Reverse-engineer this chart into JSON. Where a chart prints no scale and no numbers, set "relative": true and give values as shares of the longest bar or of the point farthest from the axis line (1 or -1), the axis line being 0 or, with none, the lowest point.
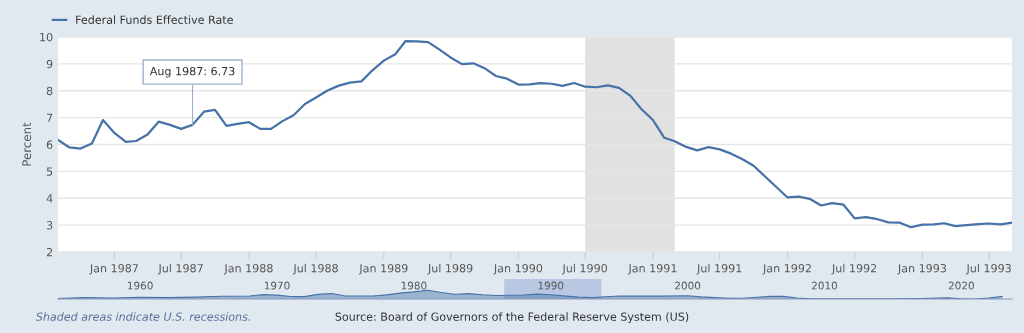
{
  "chart_data": [
    {
      "type": "line",
      "ylabel": "Percent",
      "x": [
        "1986-08",
        "1986-09",
        "1986-10",
        "1986-11",
        "1986-12",
        "1987-01",
        "1987-02",
        "1987-03",
        "1987-04",
        "1987-05",
        "1987-06",
        "1987-07",
        "1987-08",
        "1987-09",
        "1987-10",
        "1987-11",
        "1987-12",
        "1988-01",
        "1988-02",
        "1988-03",
        "1988-04",
        "1988-05",
        "1988-06",
        "1988-07",
        "1988-08",
        "1988-09",
        "1988-10",
        "1988-11",
        "1988-12",
        "1989-01",
        "1989-02",
        "1989-03",
        "1989-04",
        "1989-05",
        "1989-06",
        "1989-07",
        "1989-08",
        "1989-09",
        "1989-10",
        "1989-11",
        "1989-12",
        "1990-01",
        "1990-02",
        "1990-03",
        "1990-04",
        "1990-05",
        "1990-06",
        "1990-07",
        "1990-08",
        "1990-09",
        "1990-10",
        "1990-11",
        "1990-12",
        "1991-01",
        "1991-02",
        "1991-03",
        "1991-04",
        "1991-05",
        "1991-06",
        "1991-07",
        "1991-08",
        "1991-09",
        "1991-10",
        "1991-11",
        "1991-12",
        "1992-01",
        "1992-02",
        "1992-03",
        "1992-04",
        "1992-05",
        "1992-06",
        "1992-07",
        "1992-08",
        "1992-09",
        "1992-10",
        "1992-11",
        "1992-12",
        "1993-01",
        "1993-02",
        "1993-03",
        "1993-04",
        "1993-05",
        "1993-06",
        "1993-07",
        "1993-08",
        "1993-09"
      ],
      "series": [
        {
          "name": "Federal Funds Effective Rate",
          "color": "#4572a7",
          "values": [
            6.17,
            5.89,
            5.85,
            6.04,
            6.91,
            6.43,
            6.1,
            6.13,
            6.37,
            6.85,
            6.73,
            6.58,
            6.73,
            7.22,
            7.29,
            6.69,
            6.77,
            6.83,
            6.58,
            6.58,
            6.87,
            7.09,
            7.51,
            7.75,
            8.01,
            8.19,
            8.3,
            8.35,
            8.76,
            9.12,
            9.36,
            9.85,
            9.84,
            9.81,
            9.53,
            9.24,
            8.99,
            9.02,
            8.84,
            8.55,
            8.45,
            8.23,
            8.24,
            8.28,
            8.26,
            8.18,
            8.29,
            8.15,
            8.13,
            8.2,
            8.11,
            7.81,
            7.31,
            6.91,
            6.25,
            6.12,
            5.91,
            5.78,
            5.9,
            5.82,
            5.66,
            5.45,
            5.21,
            4.81,
            4.43,
            4.03,
            4.06,
            3.98,
            3.73,
            3.82,
            3.76,
            3.25,
            3.3,
            3.22,
            3.1,
            3.09,
            2.92,
            3.02,
            3.03,
            3.07,
            2.96,
            3.0,
            3.04,
            3.06,
            3.03,
            3.09
          ]
        }
      ],
      "xlim": [
        "1986-08",
        "1993-09"
      ],
      "xticks": [
        {
          "value": "1987-01",
          "label": "Jan 1987"
        },
        {
          "value": "1987-07",
          "label": "Jul 1987"
        },
        {
          "value": "1988-01",
          "label": "Jan 1988"
        },
        {
          "value": "1988-07",
          "label": "Jul 1988"
        },
        {
          "value": "1989-01",
          "label": "Jan 1989"
        },
        {
          "value": "1989-07",
          "label": "Jul 1989"
        },
        {
          "value": "1990-01",
          "label": "Jan 1990"
        },
        {
          "value": "1990-07",
          "label": "Jul 1990"
        },
        {
          "value": "1991-01",
          "label": "Jan 1991"
        },
        {
          "value": "1991-07",
          "label": "Jul 1991"
        },
        {
          "value": "1992-01",
          "label": "Jan 1992"
        },
        {
          "value": "1992-07",
          "label": "Jul 1992"
        },
        {
          "value": "1993-01",
          "label": "Jan 1993"
        },
        {
          "value": "1993-07",
          "label": "Jul 1993"
        }
      ],
      "ylim": [
        2,
        10
      ],
      "yticks": [
        2,
        3,
        4,
        5,
        6,
        7,
        8,
        9,
        10
      ],
      "grid": "y",
      "legend": "top left",
      "marker": "none",
      "line_style": "solid",
      "bands": [
        {
          "axis": "x",
          "from": "1990-07",
          "to": "1991-03",
          "color": "#e1e1e1"
        }
      ],
      "annotations": [
        {
          "text": "Aug 1987: 6.73",
          "x": "1987-08",
          "y": 6.73
        },
        "Shaded areas indicate U.S. recessions.",
        "Source: Board of Governors of the Federal Reserve System (US)"
      ]
    },
    {
      "type": "area",
      "relative": true,
      "x": [
        1954,
        1956,
        1958,
        1960,
        1962,
        1964,
        1966,
        1968,
        1969,
        1970,
        1971,
        1972,
        1973,
        1974,
        1975,
        1977,
        1978,
        1979,
        1980,
        1981,
        1982,
        1983,
        1984,
        1985,
        1986,
        1988,
        1989,
        1990,
        1992,
        1993,
        1995,
        1998,
        2000,
        2001,
        2003,
        2004,
        2006,
        2007,
        2008,
        2009,
        2015,
        2017,
        2019,
        2020,
        2021,
        2022,
        2023
      ],
      "series": [
        {
          "color": "#4572a7",
          "values": [
            0.06,
            0.16,
            0.1,
            0.2,
            0.16,
            0.21,
            0.31,
            0.35,
            0.5,
            0.44,
            0.29,
            0.27,
            0.53,
            0.64,
            0.35,
            0.34,
            0.48,
            0.68,
            0.82,
            1.0,
            0.75,
            0.55,
            0.62,
            0.49,
            0.41,
            0.46,
            0.56,
            0.49,
            0.21,
            0.18,
            0.35,
            0.33,
            0.38,
            0.24,
            0.07,
            0.08,
            0.3,
            0.3,
            0.12,
            0.01,
            0.01,
            0.06,
            0.13,
            0.02,
            0.0,
            0.1,
            0.3
          ]
        }
      ],
      "xlim": [
        1954,
        2023.7
      ],
      "xticks": [
        1960,
        1970,
        1980,
        1990,
        2000,
        2010,
        2020
      ],
      "bands": [
        {
          "axis": "x",
          "from": 1986.6,
          "to": 1993.7,
          "color": "#9fb3d9"
        }
      ]
    }
  ]
}
